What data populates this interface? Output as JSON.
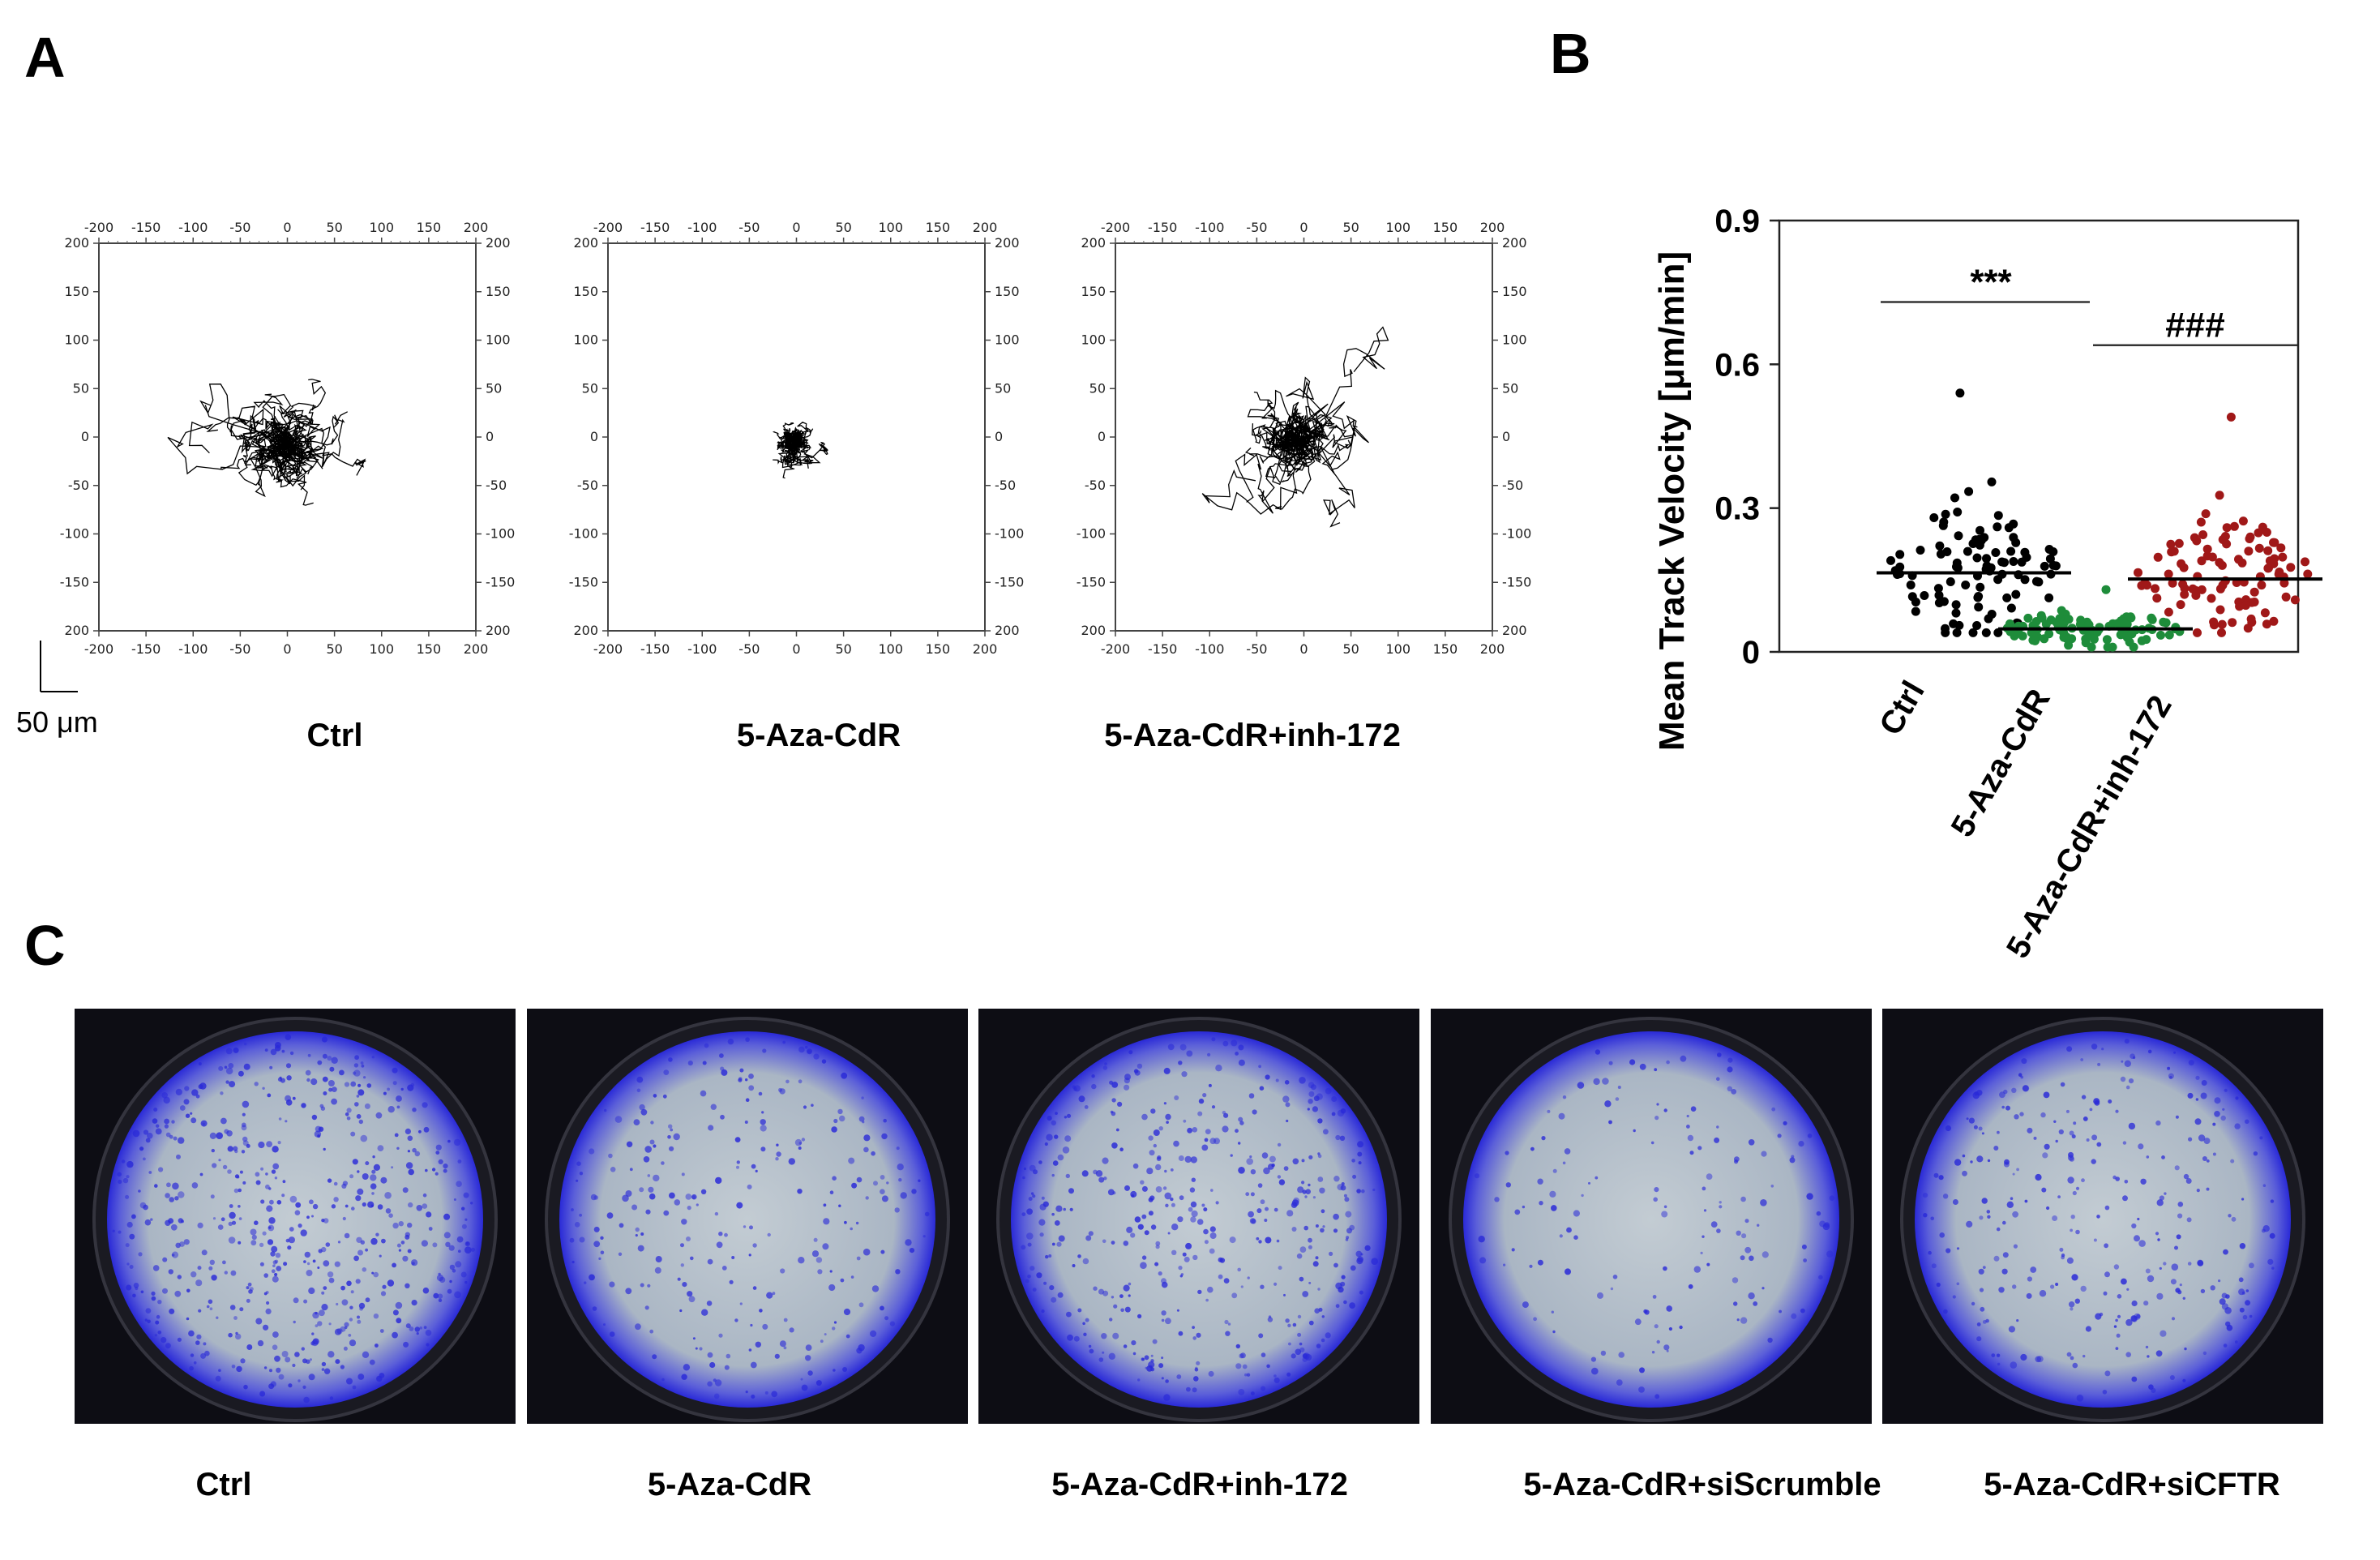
{
  "panels": {
    "a": "A",
    "b": "B",
    "c": "C"
  },
  "track_plots": {
    "tick_labels": [
      "-200",
      "-150",
      "-100",
      "-50",
      "0",
      "50",
      "100",
      "150",
      "200"
    ],
    "y_tick_labels": [
      "200",
      "150",
      "100",
      "50",
      "0",
      "-50",
      "-100",
      "-150",
      "200"
    ],
    "scale_bar_label": "50 μm",
    "plots": [
      {
        "label": "Ctrl",
        "spread": 55
      },
      {
        "label": "5-Aza-CdR",
        "spread": 18
      },
      {
        "label": "5-Aza-CdR+inh-172",
        "spread": 45
      }
    ]
  },
  "chart_data": {
    "type": "scatter",
    "ylabel": "Mean Track Velocity [μm/min]",
    "ylim": [
      0,
      0.9
    ],
    "yticks": [
      "0.9",
      "0.6",
      "0.3",
      "0"
    ],
    "categories": [
      "Ctrl",
      "5-Aza-CdR",
      "5-Aza-CdR+inh-172"
    ],
    "series": [
      {
        "category": "Ctrl",
        "color": "#000000",
        "median": 0.165,
        "max": 0.54,
        "min": 0.04,
        "n": 100
      },
      {
        "category": "5-Aza-CdR",
        "color": "#1e8c3a",
        "median": 0.048,
        "max": 0.13,
        "min": 0.01,
        "n": 100
      },
      {
        "category": "5-Aza-CdR+inh-172",
        "color": "#a01818",
        "median": 0.152,
        "max": 0.49,
        "min": 0.04,
        "n": 100
      }
    ],
    "annotations": [
      {
        "text": "***",
        "from": "Ctrl",
        "to": "5-Aza-CdR",
        "y": 0.73
      },
      {
        "text": "###",
        "from": "5-Aza-CdR",
        "to": "5-Aza-CdR+inh-172",
        "y": 0.64
      }
    ]
  },
  "wells": {
    "colors": {
      "stain": "#2a2ad8",
      "rim": "#0d0d14",
      "membrane": "#b9c4cc"
    },
    "items": [
      {
        "label": "Ctrl",
        "density": 0.55
      },
      {
        "label": "5-Aza-CdR",
        "density": 0.22
      },
      {
        "label": "5-Aza-CdR+inh-172",
        "density": 0.42
      },
      {
        "label": "5-Aza-CdR+siScrumble",
        "density": 0.08
      },
      {
        "label": "5-Aza-CdR+siCFTR",
        "density": 0.25
      }
    ]
  }
}
